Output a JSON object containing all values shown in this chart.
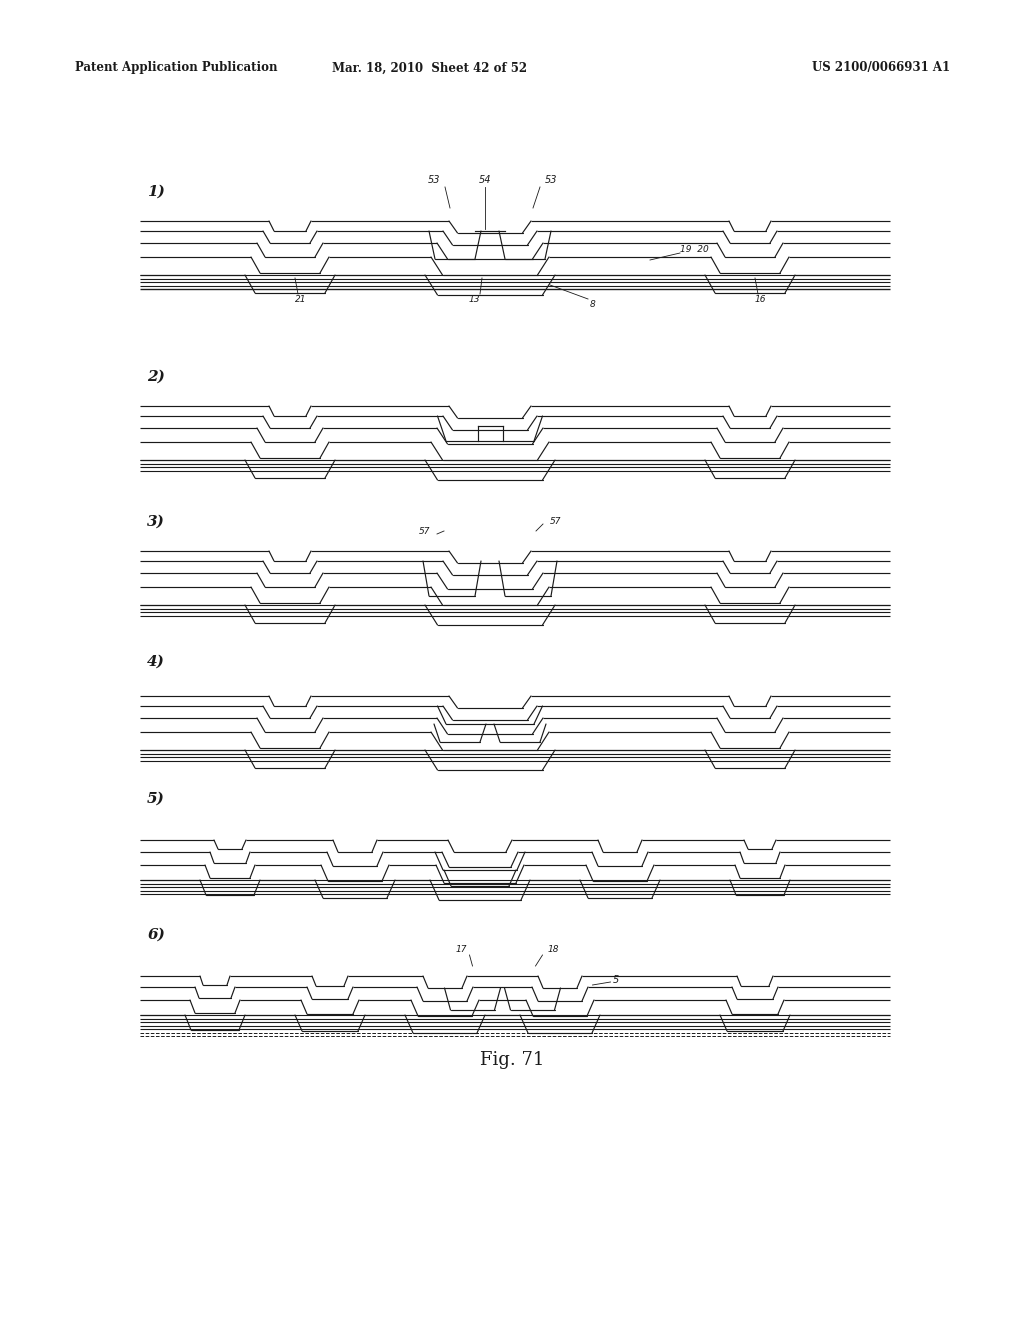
{
  "header_left": "Patent Application Publication",
  "header_center": "Mar. 18, 2010  Sheet 42 of 52",
  "header_right": "US 2100/0066931 A1",
  "background_color": "#ffffff",
  "line_color": "#1a1a1a",
  "fig_label": "Fig. 71",
  "panel_labels": [
    "1)",
    "2)",
    "3)",
    "4)",
    "5)",
    "6)"
  ]
}
